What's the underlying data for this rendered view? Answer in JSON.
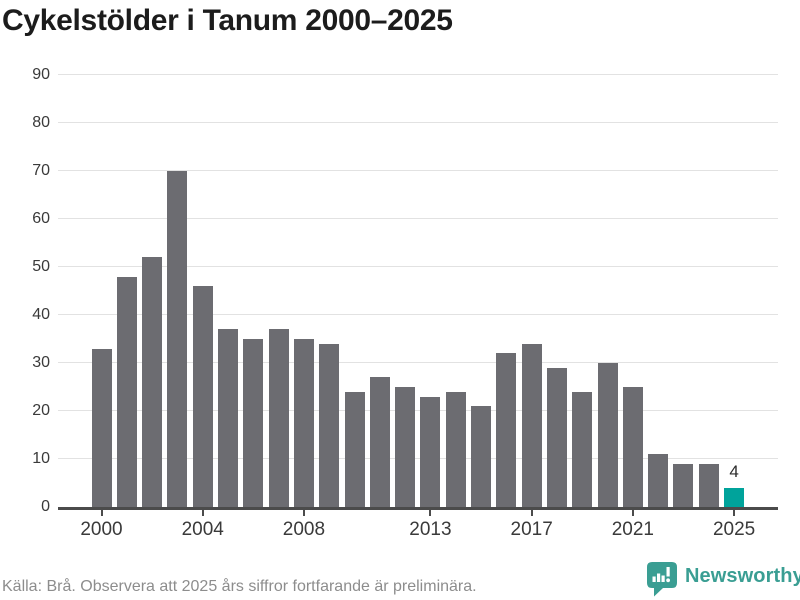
{
  "title": "Cykelstölder i Tanum 2000–2025",
  "footer": {
    "source_note": "Källa: Brå. Observera att 2025 års siffror fortfarande är preliminära."
  },
  "branding": {
    "logo_text": "Newsworthy",
    "logo_icon": "newsworthy-speech-bubble-bars-icon"
  },
  "colors": {
    "bar": "#6c6c71",
    "highlight_bar": "#00a39b",
    "grid": "#e2e2e2",
    "axis": "#4b4b4b",
    "title_text": "#1c1c1c",
    "tick_text": "#3a3a3a",
    "footer_text": "#8d8d8d",
    "brand_teal": "#3a9e93"
  },
  "chart_data": {
    "type": "bar",
    "title": "Cykelstölder i Tanum 2000–2025",
    "x": [
      2000,
      2001,
      2002,
      2003,
      2004,
      2005,
      2006,
      2007,
      2008,
      2009,
      2010,
      2011,
      2012,
      2013,
      2014,
      2015,
      2016,
      2017,
      2018,
      2019,
      2020,
      2021,
      2022,
      2023,
      2024,
      2025
    ],
    "values": [
      33,
      48,
      52,
      70,
      46,
      37,
      35,
      37,
      35,
      34,
      24,
      27,
      25,
      23,
      24,
      21,
      32,
      34,
      29,
      24,
      30,
      25,
      11,
      9,
      9,
      4
    ],
    "highlight_year": 2025,
    "value_label": {
      "year": 2025,
      "text": "4"
    },
    "ylim": [
      0,
      90
    ],
    "yticks": [
      0,
      10,
      20,
      30,
      40,
      50,
      60,
      70,
      80,
      90
    ],
    "xtick_labels": [
      "2000",
      "2004",
      "2008",
      "2013",
      "2017",
      "2021",
      "2025"
    ],
    "xtick_years": [
      2000,
      2004,
      2008,
      2013,
      2017,
      2021,
      2025
    ],
    "grid": "horizontal",
    "legend": "none",
    "xlabel": "",
    "ylabel": ""
  }
}
